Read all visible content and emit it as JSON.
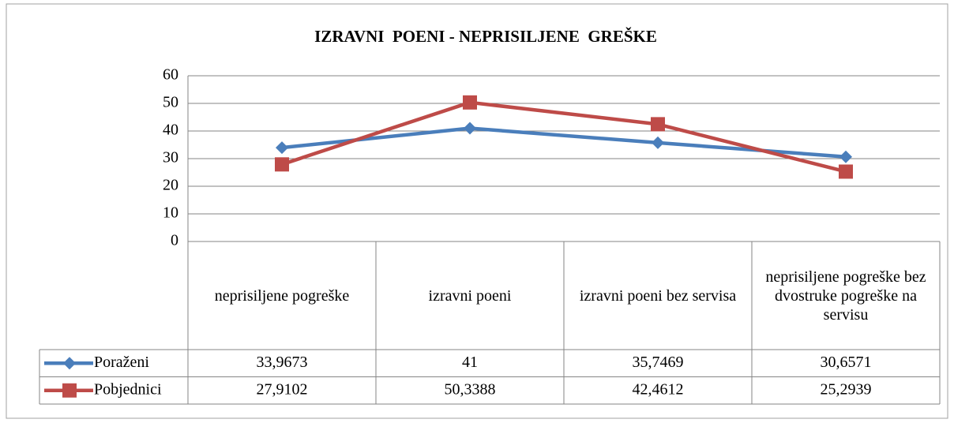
{
  "chart_data": {
    "type": "line",
    "title": "IZRAVNI  POENI - NEPRISILJENE  GREŠKE",
    "categories": [
      "neprisiljene pogreške",
      "izravni poeni",
      "izravni poeni bez servisa",
      "neprisiljene pogreške bez dvostruke pogreške na servisu"
    ],
    "series": [
      {
        "name": "Poraženi",
        "color": "#4a7ebb",
        "marker": "diamond",
        "values": [
          33.9673,
          41,
          35.7469,
          30.6571
        ],
        "value_labels": [
          "33,9673",
          "41",
          "35,7469",
          "30,6571"
        ]
      },
      {
        "name": "Pobjednici",
        "color": "#be4b48",
        "marker": "square",
        "values": [
          27.9102,
          50.3388,
          42.4612,
          25.2939
        ],
        "value_labels": [
          "27,9102",
          "50,3388",
          "42,4612",
          "25,2939"
        ]
      }
    ],
    "ylim": [
      0,
      60
    ],
    "yticks": [
      0,
      10,
      20,
      30,
      40,
      50,
      60
    ],
    "grid": true
  }
}
